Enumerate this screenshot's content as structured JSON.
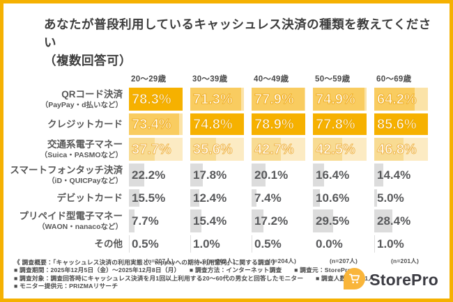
{
  "title": {
    "line1": "あなたが普段利用しているキャッシュレス決済の種類を教えてください",
    "line2": "（複数回答可）"
  },
  "columns": [
    {
      "label": "20〜29歳",
      "n": "(n=207人)"
    },
    {
      "label": "30〜39歳",
      "n": "(n=202人)"
    },
    {
      "label": "40〜49歳",
      "n": "(n=204人)"
    },
    {
      "label": "50〜59歳",
      "n": "(n=207人)"
    },
    {
      "label": "60〜69歳",
      "n": "(n=201人)"
    }
  ],
  "rows": [
    {
      "label": "QRコード決済",
      "sublabel": "（PayPay・d払いなど）",
      "ranks": [
        "r1",
        "r2",
        "r2",
        "r2",
        "r2"
      ]
    },
    {
      "label": "クレジットカード",
      "sublabel": "",
      "ranks": [
        "r2",
        "r1",
        "r1",
        "r1",
        "r1"
      ]
    },
    {
      "label": "交通系電子マネー",
      "sublabel": "（Suica・PASMOなど）",
      "ranks": [
        "r3",
        "r3",
        "r3",
        "r3",
        "r3"
      ]
    },
    {
      "label": "スマートフォンタッチ決済",
      "sublabel": "（iD・QUICPayなど）",
      "ranks": [
        "gray",
        "gray",
        "gray",
        "gray",
        "gray"
      ]
    },
    {
      "label": "デビットカード",
      "sublabel": "",
      "ranks": [
        "gray",
        "gray",
        "gray",
        "gray",
        "gray"
      ]
    },
    {
      "label": "プリペイド型電子マネー",
      "sublabel": "（WAON・nanacoなど）",
      "ranks": [
        "gray",
        "gray",
        "gray",
        "gray",
        "gray"
      ]
    },
    {
      "label": "その他",
      "sublabel": "",
      "ranks": [
        "gray",
        "gray",
        "gray",
        "gray",
        "gray"
      ]
    }
  ],
  "chart_data": {
    "type": "bar",
    "title": "あなたが普段利用しているキャッシュレス決済の種類を教えてください（複数回答可）",
    "unit": "%",
    "categories": [
      "20〜29歳",
      "30〜39歳",
      "40〜49歳",
      "50〜59歳",
      "60〜69歳"
    ],
    "sample_sizes": [
      207,
      202,
      204,
      207,
      201
    ],
    "series": [
      {
        "name": "QRコード決済（PayPay・d払いなど）",
        "values": [
          78.3,
          71.3,
          77.9,
          74.9,
          64.2
        ]
      },
      {
        "name": "クレジットカード",
        "values": [
          73.4,
          74.8,
          78.9,
          77.8,
          85.6
        ]
      },
      {
        "name": "交通系電子マネー（Suica・PASMOなど）",
        "values": [
          37.7,
          35.6,
          42.7,
          42.5,
          46.8
        ]
      },
      {
        "name": "スマートフォンタッチ決済（iD・QUICPayなど）",
        "values": [
          22.2,
          17.8,
          20.1,
          16.4,
          14.4
        ]
      },
      {
        "name": "デビットカード",
        "values": [
          15.5,
          12.4,
          7.4,
          10.6,
          5.0
        ]
      },
      {
        "name": "プリペイド型電子マネー（WAON・nanacoなど）",
        "values": [
          7.7,
          15.4,
          17.2,
          29.5,
          28.4
        ]
      },
      {
        "name": "その他",
        "values": [
          0.5,
          1.0,
          0.5,
          0.0,
          1.0
        ]
      }
    ],
    "layout_hints": {
      "bar_scale": "per-column, relative to column max",
      "highlight": "top 3 rows per column shaded yellow by rank"
    }
  },
  "footer": {
    "line1": "《 調査概要：「キャッシュレス決済の利用実態と、teppayへの期待・利用意向」に関する調査 》",
    "line2": "■ 調査期間：2025年12月5日（金）～2025年12月8日（月）　　■ 調査方法：インターネット調査　　■ 調査元：StorePro",
    "line3": "■ 調査対象：調査回答時にキャッシュレス決済を月1回以上利用する20～60代の男女と回答したモニター　　■ 調査人数：1,021人",
    "line4": "■ モニター提供元：PRIZMAリサーチ"
  },
  "logo": {
    "text": "StorePro",
    "icon": "cart-pin-icon"
  },
  "colors": {
    "border": "#F5B101",
    "rank1_bar": "#F6B100",
    "rank1_bg": "#F8CA4D",
    "rank2_bar": "#F9CC60",
    "rank2_bg": "#FBE3A8",
    "rank3_bar": "#F8DB92",
    "rank3_bg": "#FCEBC3",
    "gray_bar": "#DCDCDC",
    "logo_pin": "#F9B53A"
  }
}
